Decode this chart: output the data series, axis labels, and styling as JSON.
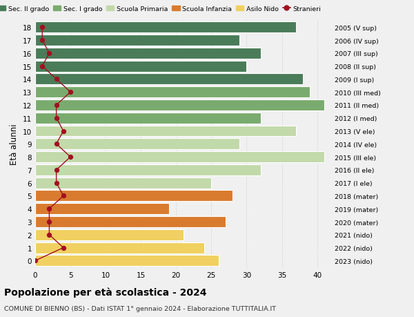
{
  "ages": [
    18,
    17,
    16,
    15,
    14,
    13,
    12,
    11,
    10,
    9,
    8,
    7,
    6,
    5,
    4,
    3,
    2,
    1,
    0
  ],
  "years": [
    "2005 (V sup)",
    "2006 (IV sup)",
    "2007 (III sup)",
    "2008 (II sup)",
    "2009 (I sup)",
    "2010 (III med)",
    "2011 (II med)",
    "2012 (I med)",
    "2013 (V ele)",
    "2014 (IV ele)",
    "2015 (III ele)",
    "2016 (II ele)",
    "2017 (I ele)",
    "2018 (mater)",
    "2019 (mater)",
    "2020 (mater)",
    "2021 (nido)",
    "2022 (nido)",
    "2023 (nido)"
  ],
  "bar_values": [
    37,
    29,
    32,
    30,
    38,
    39,
    41,
    32,
    37,
    29,
    41,
    32,
    25,
    28,
    19,
    27,
    21,
    24,
    26
  ],
  "bar_colors": [
    "#4a7c59",
    "#4a7c59",
    "#4a7c59",
    "#4a7c59",
    "#4a7c59",
    "#7aab6e",
    "#7aab6e",
    "#7aab6e",
    "#c2d9aa",
    "#c2d9aa",
    "#c2d9aa",
    "#c2d9aa",
    "#c2d9aa",
    "#d97b2e",
    "#d97b2e",
    "#d97b2e",
    "#f0d060",
    "#f0d060",
    "#f0d060"
  ],
  "stranieri": [
    1,
    1,
    2,
    1,
    3,
    5,
    3,
    3,
    4,
    3,
    5,
    3,
    3,
    4,
    2,
    2,
    2,
    4,
    0
  ],
  "legend_labels": [
    "Sec. II grado",
    "Sec. I grado",
    "Scuola Primaria",
    "Scuola Infanzia",
    "Asilo Nido",
    "Stranieri"
  ],
  "legend_colors": [
    "#4a7c59",
    "#7aab6e",
    "#c2d9aa",
    "#d97b2e",
    "#f0d060",
    "#a01020"
  ],
  "ylabel_left": "Età alunni",
  "title": "Popolazione per età scolastica - 2024",
  "subtitle": "COMUNE DI BIENNO (BS) - Dati ISTAT 1° gennaio 2024 - Elaborazione TUTTITALIA.IT",
  "xlim": [
    0,
    42
  ],
  "xticks": [
    0,
    5,
    10,
    15,
    20,
    25,
    30,
    35,
    40
  ],
  "background_color": "#f0f0f0",
  "grid_color": "#cccccc",
  "stranieri_color": "#a01020"
}
